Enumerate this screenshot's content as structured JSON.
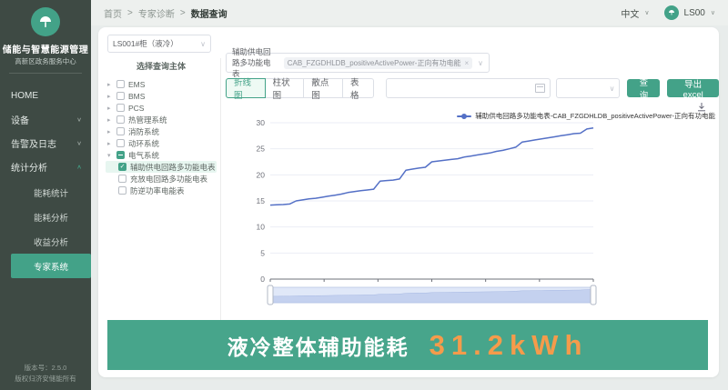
{
  "colors": {
    "accent_teal": "#43A288",
    "sidebar_bg": "#3E4A44",
    "line_series": "#5470C6",
    "banner_bg": "#47A58B",
    "banner_value": "#F59B4B"
  },
  "glyphs": {
    "chevron_down": "∨",
    "chevron_up": "∧",
    "caret_collapsed": "▸",
    "caret_expanded": "▾",
    "check": "✓",
    "close": "×"
  },
  "sidebar": {
    "title": "储能与智慧能源管理",
    "subtitle": "高新区政务服务中心",
    "nav": [
      {
        "label": "HOME"
      },
      {
        "label": "设备"
      },
      {
        "label": "告警及日志"
      },
      {
        "label": "统计分析"
      }
    ],
    "subnav": [
      {
        "label": "能耗统计"
      },
      {
        "label": "能耗分析"
      },
      {
        "label": "收益分析"
      },
      {
        "label": "专家系统"
      }
    ],
    "version": "版本号：2.5.0",
    "copyright": "版权归济安储能所有"
  },
  "topbar": {
    "breadcrumb": {
      "home": "首页",
      "section": "专家诊断",
      "current": "数据查询",
      "separator": ">"
    },
    "language": "中文",
    "username": "LS00"
  },
  "query": {
    "cabinet_selected": "LS001#柜（液冷）",
    "tree": {
      "title": "选择查询主体",
      "nodes": [
        {
          "label": "EMS"
        },
        {
          "label": "BMS"
        },
        {
          "label": "PCS"
        },
        {
          "label": "热管理系统"
        },
        {
          "label": "消防系统"
        },
        {
          "label": "动环系统"
        },
        {
          "label": "电气系统"
        }
      ],
      "children": [
        {
          "label": "辅助供电回路多功能电表",
          "checked": true
        },
        {
          "label": "充放电回路多功能电表",
          "checked": false
        },
        {
          "label": "防逆功率电能表",
          "checked": false
        }
      ]
    },
    "device_label": "辅助供电回路多功能电表",
    "point_tag": "CAB_FZGDHLDB_positiveActivePower-正向有功电能",
    "tabs": [
      "折线图",
      "柱状图",
      "散点图",
      "表格"
    ],
    "date_value": "",
    "interval_value": "",
    "search_button": "查询",
    "export_button": "导出excel"
  },
  "chart_data": {
    "type": "line",
    "title": "",
    "xlabel": "",
    "ylabel": "",
    "ylim": [
      0,
      30
    ],
    "yticks": [
      0,
      5,
      10,
      15,
      20,
      25,
      30
    ],
    "grid": true,
    "legend_position": "top-right",
    "datazoom": true,
    "series": [
      {
        "name": "辅助供电回路多功能电表-CAB_FZGDHLDB_positiveActivePower-正向有功电能",
        "color": "#5470C6",
        "values": [
          14.2,
          14.25,
          14.3,
          14.4,
          15.0,
          15.2,
          15.4,
          15.5,
          15.7,
          15.9,
          16.1,
          16.3,
          16.6,
          16.8,
          16.95,
          17.1,
          17.25,
          18.8,
          18.9,
          19.0,
          19.2,
          20.9,
          21.1,
          21.3,
          21.45,
          22.5,
          22.65,
          22.8,
          22.95,
          23.1,
          23.4,
          23.6,
          23.8,
          24.0,
          24.2,
          24.5,
          24.7,
          25.0,
          25.3,
          26.3,
          26.5,
          26.7,
          26.9,
          27.1,
          27.3,
          27.5,
          27.7,
          27.9,
          28.0,
          28.8,
          29.0
        ]
      }
    ]
  },
  "banner": {
    "label": "液冷整体辅助能耗",
    "value": "31.2kWh"
  }
}
